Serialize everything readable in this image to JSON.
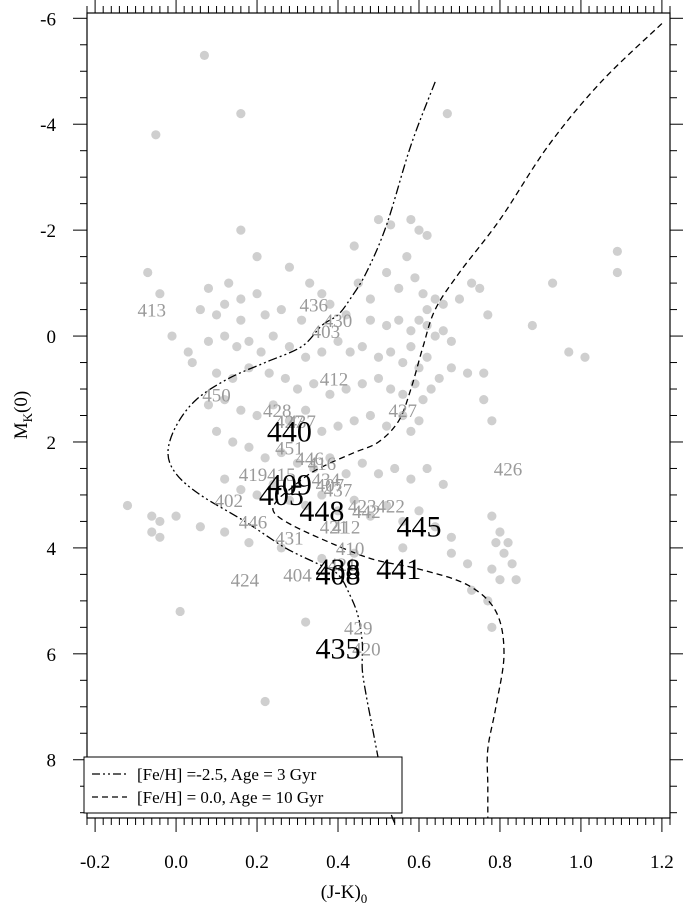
{
  "chart_data": {
    "type": "scatter",
    "title": "",
    "xlabel": "(J-K)",
    "xlabel_sub": "0",
    "ylabel": "M",
    "ylabel_sub": "K",
    "ylabel_tail": "(0)",
    "xlim": [
      -0.22,
      1.22
    ],
    "ylim": [
      9.1,
      -6.1
    ],
    "y_inverted": true,
    "grid": false,
    "x_ticks": [
      "-0.2",
      "0.0",
      "0.2",
      "0.4",
      "0.6",
      "0.8",
      "1.0",
      "1.2"
    ],
    "x_tick_values": [
      -0.2,
      0.0,
      0.2,
      0.4,
      0.6,
      0.8,
      1.0,
      1.2
    ],
    "y_ticks": [
      "-6",
      "-4",
      "-2",
      "0",
      "2",
      "4",
      "6",
      "8"
    ],
    "y_tick_values": [
      -6,
      -4,
      -2,
      0,
      2,
      4,
      6,
      8
    ],
    "legend_position": "bottom-left",
    "legend": [
      {
        "label": "[Fe/H] =-2.5, Age =  3 Gyr",
        "style": "dash-dot-dot"
      },
      {
        "label": "[Fe/H] = 0.0, Age = 10 Gyr",
        "style": "dashed"
      }
    ],
    "point_color": "#cfcfcf",
    "background_points": [
      [
        0.07,
        -5.3
      ],
      [
        0.16,
        -4.2
      ],
      [
        -0.05,
        -3.8
      ],
      [
        0.67,
        -4.2
      ],
      [
        0.5,
        -2.2
      ],
      [
        0.53,
        -2.1
      ],
      [
        0.58,
        -2.2
      ],
      [
        0.6,
        -2.0
      ],
      [
        0.62,
        -1.9
      ],
      [
        0.16,
        -2.0
      ],
      [
        0.2,
        -1.5
      ],
      [
        0.44,
        -1.7
      ],
      [
        -0.07,
        -1.2
      ],
      [
        -0.04,
        -0.8
      ],
      [
        0.08,
        -0.9
      ],
      [
        0.13,
        -1.0
      ],
      [
        0.16,
        -0.7
      ],
      [
        0.2,
        -0.8
      ],
      [
        0.28,
        -1.3
      ],
      [
        0.33,
        -1.0
      ],
      [
        0.36,
        -0.8
      ],
      [
        0.45,
        -1.0
      ],
      [
        0.48,
        -0.7
      ],
      [
        0.52,
        -1.2
      ],
      [
        0.55,
        -0.9
      ],
      [
        0.57,
        -1.5
      ],
      [
        0.59,
        -1.1
      ],
      [
        0.61,
        -0.8
      ],
      [
        0.62,
        -0.5
      ],
      [
        0.64,
        -0.7
      ],
      [
        0.66,
        -0.6
      ],
      [
        0.7,
        -0.7
      ],
      [
        0.73,
        -1.0
      ],
      [
        0.75,
        -0.9
      ],
      [
        0.77,
        -0.4
      ],
      [
        0.06,
        -0.5
      ],
      [
        0.1,
        -0.4
      ],
      [
        0.12,
        -0.6
      ],
      [
        0.16,
        -0.3
      ],
      [
        0.22,
        -0.4
      ],
      [
        0.26,
        -0.5
      ],
      [
        0.31,
        -0.3
      ],
      [
        0.38,
        -0.6
      ],
      [
        0.42,
        -0.4
      ],
      [
        0.48,
        -0.3
      ],
      [
        0.52,
        -0.2
      ],
      [
        0.55,
        -0.3
      ],
      [
        0.58,
        -0.1
      ],
      [
        0.6,
        -0.3
      ],
      [
        0.62,
        -0.2
      ],
      [
        0.64,
        0.0
      ],
      [
        0.66,
        -0.1
      ],
      [
        0.68,
        0.1
      ],
      [
        -0.01,
        0.0
      ],
      [
        0.03,
        0.3
      ],
      [
        0.08,
        0.1
      ],
      [
        0.12,
        0.0
      ],
      [
        0.15,
        0.2
      ],
      [
        0.18,
        0.1
      ],
      [
        0.21,
        0.3
      ],
      [
        0.24,
        0.0
      ],
      [
        0.28,
        0.2
      ],
      [
        0.32,
        0.4
      ],
      [
        0.36,
        0.3
      ],
      [
        0.4,
        0.1
      ],
      [
        0.43,
        0.3
      ],
      [
        0.46,
        0.2
      ],
      [
        0.5,
        0.4
      ],
      [
        0.53,
        0.3
      ],
      [
        0.56,
        0.5
      ],
      [
        0.58,
        0.2
      ],
      [
        0.6,
        0.6
      ],
      [
        0.62,
        0.4
      ],
      [
        0.65,
        0.8
      ],
      [
        0.68,
        0.6
      ],
      [
        0.72,
        0.7
      ],
      [
        0.93,
        -1.0
      ],
      [
        0.97,
        0.3
      ],
      [
        1.01,
        0.4
      ],
      [
        1.09,
        -1.6
      ],
      [
        1.09,
        -1.2
      ],
      [
        0.04,
        0.5
      ],
      [
        0.1,
        0.7
      ],
      [
        0.14,
        0.8
      ],
      [
        0.18,
        0.6
      ],
      [
        0.23,
        0.7
      ],
      [
        0.27,
        0.8
      ],
      [
        0.3,
        1.0
      ],
      [
        0.34,
        0.9
      ],
      [
        0.38,
        1.1
      ],
      [
        0.42,
        1.0
      ],
      [
        0.46,
        0.9
      ],
      [
        0.5,
        0.8
      ],
      [
        0.53,
        1.0
      ],
      [
        0.56,
        1.1
      ],
      [
        0.59,
        0.9
      ],
      [
        0.61,
        1.2
      ],
      [
        0.63,
        1.0
      ],
      [
        0.76,
        0.7
      ],
      [
        0.08,
        1.3
      ],
      [
        0.12,
        1.2
      ],
      [
        0.16,
        1.4
      ],
      [
        0.2,
        1.5
      ],
      [
        0.24,
        1.3
      ],
      [
        0.28,
        1.6
      ],
      [
        0.32,
        1.4
      ],
      [
        0.36,
        1.8
      ],
      [
        0.4,
        1.7
      ],
      [
        0.44,
        1.6
      ],
      [
        0.48,
        1.5
      ],
      [
        0.52,
        1.7
      ],
      [
        0.56,
        1.5
      ],
      [
        0.58,
        1.8
      ],
      [
        0.6,
        1.6
      ],
      [
        0.1,
        1.8
      ],
      [
        0.14,
        2.0
      ],
      [
        0.18,
        2.1
      ],
      [
        0.22,
        2.3
      ],
      [
        0.26,
        2.2
      ],
      [
        0.3,
        2.4
      ],
      [
        0.34,
        2.5
      ],
      [
        0.38,
        2.3
      ],
      [
        0.42,
        2.6
      ],
      [
        0.46,
        2.4
      ],
      [
        0.5,
        2.6
      ],
      [
        0.54,
        2.5
      ],
      [
        0.58,
        2.7
      ],
      [
        0.62,
        2.5
      ],
      [
        0.66,
        2.8
      ],
      [
        0.12,
        2.7
      ],
      [
        0.16,
        2.9
      ],
      [
        0.2,
        3.0
      ],
      [
        0.24,
        2.8
      ],
      [
        0.28,
        3.1
      ],
      [
        0.32,
        3.2
      ],
      [
        0.36,
        3.0
      ],
      [
        0.4,
        3.3
      ],
      [
        0.44,
        3.1
      ],
      [
        0.48,
        3.4
      ],
      [
        0.52,
        3.2
      ],
      [
        0.56,
        3.5
      ],
      [
        0.6,
        3.3
      ],
      [
        0.64,
        3.6
      ],
      [
        -0.12,
        3.2
      ],
      [
        -0.06,
        3.4
      ],
      [
        -0.04,
        3.5
      ],
      [
        -0.06,
        3.7
      ],
      [
        -0.04,
        3.8
      ],
      [
        0.0,
        3.4
      ],
      [
        0.06,
        3.6
      ],
      [
        0.12,
        3.7
      ],
      [
        0.18,
        3.9
      ],
      [
        0.26,
        4.0
      ],
      [
        0.36,
        4.2
      ],
      [
        0.44,
        4.1
      ],
      [
        0.56,
        4.0
      ],
      [
        0.68,
        3.8
      ],
      [
        0.78,
        3.4
      ],
      [
        0.79,
        3.9
      ],
      [
        0.8,
        3.7
      ],
      [
        0.81,
        4.1
      ],
      [
        0.82,
        3.9
      ],
      [
        0.83,
        4.3
      ],
      [
        0.78,
        4.4
      ],
      [
        0.8,
        4.6
      ],
      [
        0.84,
        4.6
      ],
      [
        0.73,
        4.8
      ],
      [
        0.77,
        5.0
      ],
      [
        0.78,
        5.5
      ],
      [
        0.72,
        4.3
      ],
      [
        0.68,
        4.1
      ],
      [
        0.01,
        5.2
      ],
      [
        0.32,
        5.4
      ],
      [
        0.22,
        6.9
      ],
      [
        0.78,
        1.6
      ],
      [
        0.76,
        1.2
      ],
      [
        0.88,
        -0.2
      ]
    ],
    "gray_labels": [
      {
        "text": "413",
        "x": -0.06,
        "y": -0.5
      },
      {
        "text": "436",
        "x": 0.34,
        "y": -0.6
      },
      {
        "text": "430",
        "x": 0.4,
        "y": -0.3
      },
      {
        "text": "403",
        "x": 0.37,
        "y": -0.1
      },
      {
        "text": "412",
        "x": 0.39,
        "y": 0.8
      },
      {
        "text": "450",
        "x": 0.1,
        "y": 1.1
      },
      {
        "text": "428",
        "x": 0.25,
        "y": 1.4
      },
      {
        "text": "427",
        "x": 0.28,
        "y": 1.6
      },
      {
        "text": "437",
        "x": 0.31,
        "y": 1.6
      },
      {
        "text": "427",
        "x": 0.56,
        "y": 1.4
      },
      {
        "text": "451",
        "x": 0.28,
        "y": 2.1
      },
      {
        "text": "446",
        "x": 0.33,
        "y": 2.3
      },
      {
        "text": "416",
        "x": 0.36,
        "y": 2.4
      },
      {
        "text": "426",
        "x": 0.82,
        "y": 2.5
      },
      {
        "text": "419",
        "x": 0.19,
        "y": 2.6
      },
      {
        "text": "415",
        "x": 0.26,
        "y": 2.6
      },
      {
        "text": "434",
        "x": 0.37,
        "y": 2.7
      },
      {
        "text": "407",
        "x": 0.38,
        "y": 2.8
      },
      {
        "text": "437",
        "x": 0.4,
        "y": 2.9
      },
      {
        "text": "402",
        "x": 0.13,
        "y": 3.1
      },
      {
        "text": "423",
        "x": 0.46,
        "y": 3.2
      },
      {
        "text": "422",
        "x": 0.53,
        "y": 3.2
      },
      {
        "text": "442",
        "x": 0.47,
        "y": 3.3
      },
      {
        "text": "446",
        "x": 0.19,
        "y": 3.5
      },
      {
        "text": "421",
        "x": 0.39,
        "y": 3.6
      },
      {
        "text": "412",
        "x": 0.42,
        "y": 3.6
      },
      {
        "text": "431",
        "x": 0.28,
        "y": 3.8
      },
      {
        "text": "410",
        "x": 0.43,
        "y": 4.0
      },
      {
        "text": "421",
        "x": 0.41,
        "y": 4.3
      },
      {
        "text": "404",
        "x": 0.3,
        "y": 4.5
      },
      {
        "text": "424",
        "x": 0.17,
        "y": 4.6
      },
      {
        "text": "429",
        "x": 0.45,
        "y": 5.5
      },
      {
        "text": "420",
        "x": 0.47,
        "y": 5.9
      }
    ],
    "black_labels": [
      {
        "text": "440",
        "x": 0.28,
        "y": 1.8
      },
      {
        "text": "409",
        "x": 0.28,
        "y": 2.8
      },
      {
        "text": "405",
        "x": 0.26,
        "y": 3.0
      },
      {
        "text": "448",
        "x": 0.36,
        "y": 3.3
      },
      {
        "text": "445",
        "x": 0.6,
        "y": 3.6
      },
      {
        "text": "438",
        "x": 0.4,
        "y": 4.4
      },
      {
        "text": "408",
        "x": 0.4,
        "y": 4.5
      },
      {
        "text": "441",
        "x": 0.55,
        "y": 4.4
      },
      {
        "text": "435",
        "x": 0.4,
        "y": 5.9
      }
    ],
    "series": [
      {
        "name": "[Fe/H] =-2.5, Age =  3 Gyr",
        "style": "dash-dot-dot",
        "x": [
          0.64,
          0.58,
          0.52,
          0.47,
          0.43,
          0.4,
          0.36,
          0.31,
          0.22,
          0.13,
          0.05,
          0.0,
          -0.02,
          0.0,
          0.06,
          0.17,
          0.27,
          0.35,
          0.4,
          0.43,
          0.45,
          0.46,
          0.46,
          0.47,
          0.48,
          0.49,
          0.5,
          0.51,
          0.52,
          0.53,
          0.54
        ],
        "y": [
          -4.8,
          -3.6,
          -2.1,
          -1.2,
          -0.7,
          -0.4,
          -0.2,
          0.2,
          0.5,
          0.8,
          1.2,
          1.7,
          2.2,
          2.6,
          3.0,
          3.5,
          4.0,
          4.3,
          4.5,
          4.9,
          5.3,
          5.8,
          6.3,
          6.8,
          7.2,
          7.6,
          8.0,
          8.4,
          8.7,
          9.0,
          9.2
        ]
      },
      {
        "name": "[Fe/H] = 0.0, Age = 10 Gyr",
        "style": "dashed",
        "x": [
          1.2,
          1.05,
          0.92,
          0.8,
          0.7,
          0.64,
          0.61,
          0.58,
          0.55,
          0.5,
          0.44,
          0.38,
          0.33,
          0.28,
          0.25,
          0.24,
          0.27,
          0.35,
          0.48,
          0.6,
          0.72,
          0.79,
          0.81,
          0.79,
          0.77,
          0.77,
          0.77
        ],
        "y": [
          -5.9,
          -4.8,
          -3.6,
          -2.2,
          -1.2,
          -0.5,
          0.2,
          1.0,
          1.6,
          2.0,
          2.2,
          2.4,
          2.6,
          2.9,
          3.1,
          3.3,
          3.5,
          3.8,
          4.2,
          4.4,
          4.7,
          5.2,
          6.0,
          7.0,
          7.8,
          8.5,
          9.1
        ]
      }
    ]
  }
}
